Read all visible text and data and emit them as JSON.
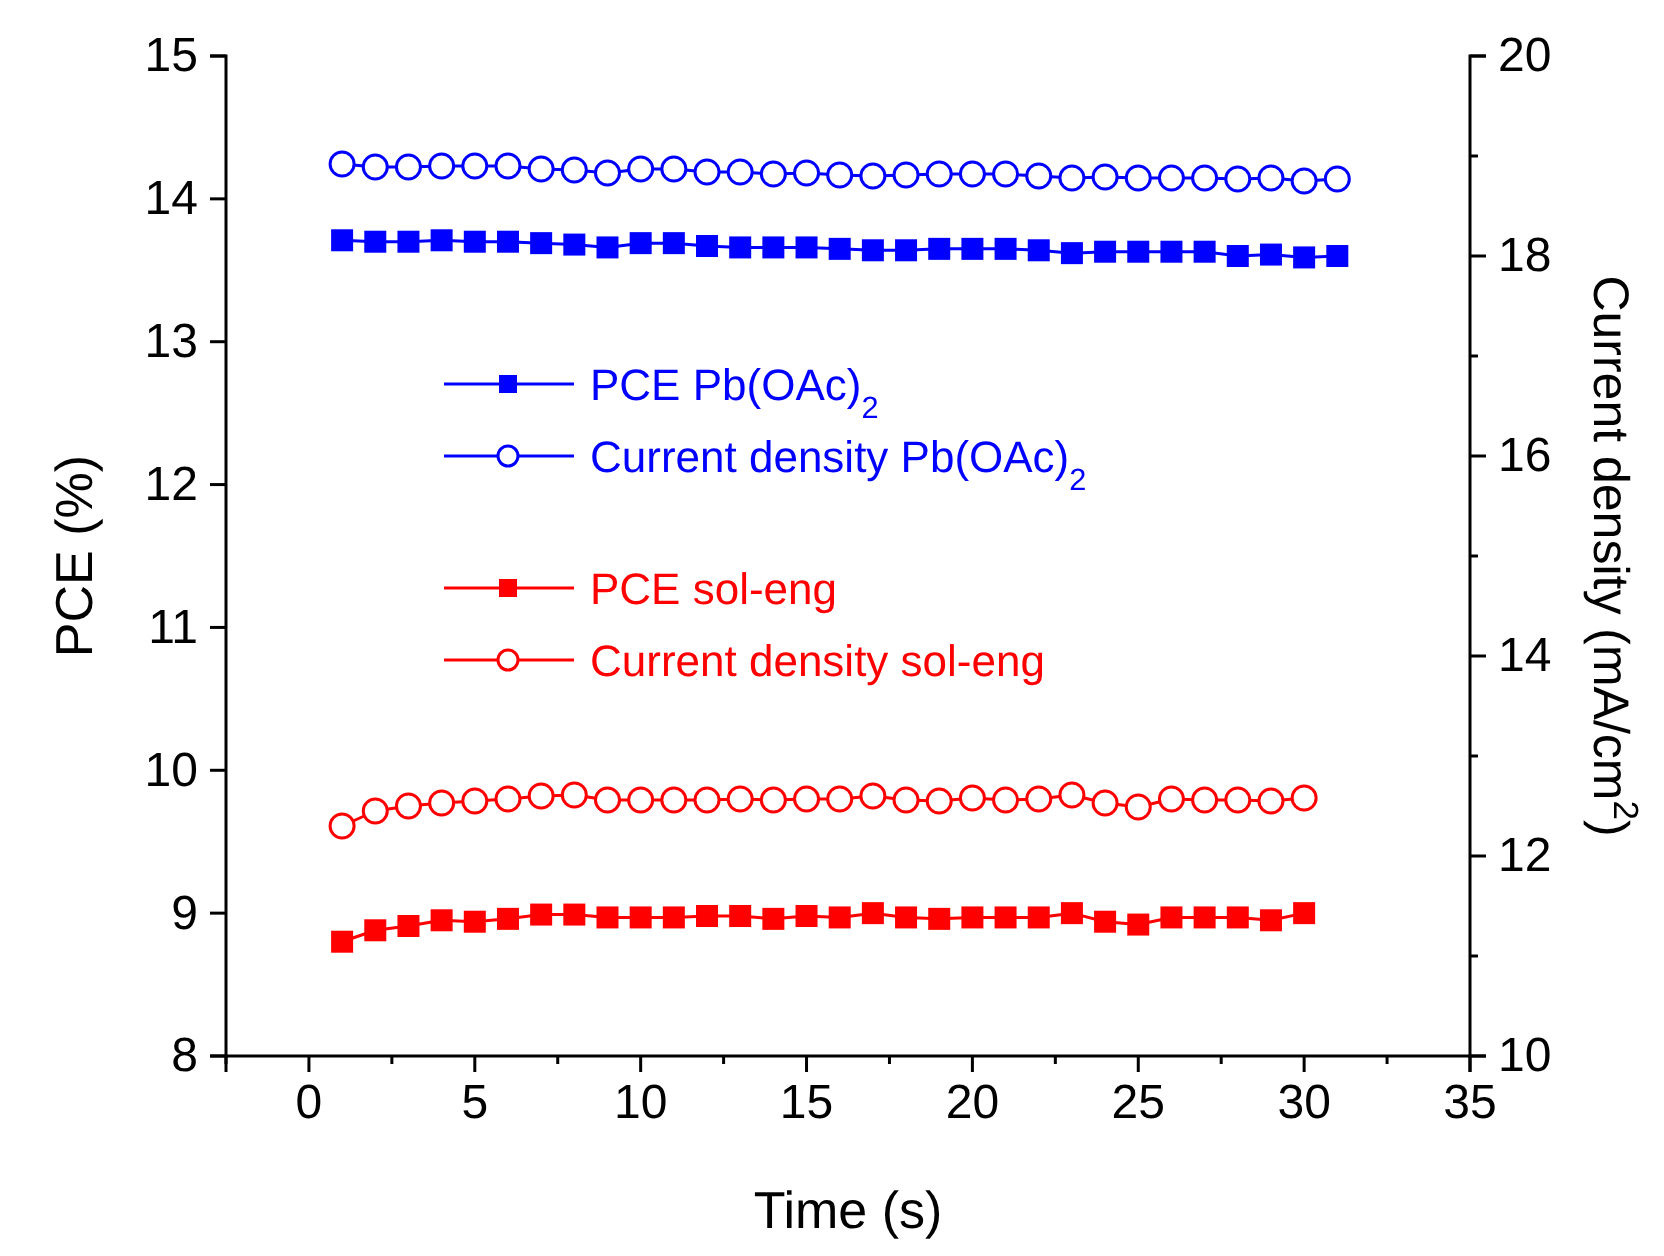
{
  "chart_data": {
    "type": "line",
    "xlabel": "Time (s)",
    "ylabel": "PCE (%)",
    "y2label": "Current density (mA/cm$^{2}$)",
    "xlim": [
      -2.5,
      35
    ],
    "xticks": [
      {
        "value": -2.5,
        "label": null
      },
      0,
      {
        "value": 2.5,
        "label": null
      },
      5,
      {
        "value": 7.5,
        "label": null
      },
      10,
      {
        "value": 12.5,
        "label": null
      },
      15,
      {
        "value": 17.5,
        "label": null
      },
      20,
      {
        "value": 22.5,
        "label": null
      },
      25,
      {
        "value": 27.5,
        "label": null
      },
      30,
      {
        "value": 32.5,
        "label": null
      },
      35
    ],
    "ylim": [
      8,
      15
    ],
    "yticks": [
      8,
      9,
      10,
      11,
      12,
      13,
      14,
      15
    ],
    "y2lim": [
      10,
      20
    ],
    "y2ticks": [
      10,
      {
        "value": 11,
        "label": null
      },
      12,
      {
        "value": 13,
        "label": null
      },
      14,
      {
        "value": 15,
        "label": null
      },
      16,
      {
        "value": 17,
        "label": null
      },
      18,
      {
        "value": 19,
        "label": null
      },
      20
    ],
    "legend": "center left",
    "line_style": "solid",
    "grid": false,
    "series": [
      {
        "name": "PCE Pb(OAc)$_{2}$",
        "color": "#0000ff",
        "marker": "square",
        "x": [
          1,
          2,
          3,
          4,
          5,
          6,
          7,
          8,
          9,
          10,
          11,
          12,
          13,
          14,
          15,
          16,
          17,
          18,
          19,
          20,
          21,
          22,
          23,
          24,
          25,
          26,
          27,
          28,
          29,
          30,
          31
        ],
        "values": [
          13.71,
          13.7,
          13.7,
          13.71,
          13.7,
          13.7,
          13.69,
          13.68,
          13.66,
          13.69,
          13.69,
          13.67,
          13.66,
          13.66,
          13.66,
          13.65,
          13.64,
          13.64,
          13.65,
          13.65,
          13.65,
          13.64,
          13.62,
          13.63,
          13.63,
          13.63,
          13.63,
          13.6,
          13.61,
          13.59,
          13.6
        ]
      },
      {
        "name": "Current density Pb(OAc)$_{2}$",
        "color": "#0000ff",
        "marker": "circle",
        "axis": "y2",
        "x": [
          1,
          2,
          3,
          4,
          5,
          6,
          7,
          8,
          9,
          10,
          11,
          12,
          13,
          14,
          15,
          16,
          17,
          18,
          19,
          20,
          21,
          22,
          23,
          24,
          25,
          26,
          27,
          28,
          29,
          30,
          31
        ],
        "values": [
          18.92,
          18.89,
          18.89,
          18.9,
          18.9,
          18.9,
          18.87,
          18.86,
          18.83,
          18.87,
          18.87,
          18.84,
          18.84,
          18.82,
          18.83,
          18.81,
          18.8,
          18.81,
          18.82,
          18.82,
          18.82,
          18.8,
          18.78,
          18.79,
          18.78,
          18.78,
          18.78,
          18.77,
          18.78,
          18.75,
          18.77
        ]
      },
      {
        "name": "PCE sol-eng",
        "color": "#ff0000",
        "marker": "square",
        "x": [
          1,
          2,
          3,
          4,
          5,
          6,
          7,
          8,
          9,
          10,
          11,
          12,
          13,
          14,
          15,
          16,
          17,
          18,
          19,
          20,
          21,
          22,
          23,
          24,
          25,
          26,
          27,
          28,
          29,
          30
        ],
        "values": [
          8.8,
          8.88,
          8.91,
          8.95,
          8.94,
          8.96,
          8.99,
          8.99,
          8.97,
          8.97,
          8.97,
          8.98,
          8.98,
          8.96,
          8.98,
          8.97,
          9.0,
          8.97,
          8.96,
          8.97,
          8.97,
          8.97,
          9.0,
          8.94,
          8.92,
          8.97,
          8.97,
          8.97,
          8.95,
          9.0
        ]
      },
      {
        "name": "Current density sol-eng",
        "color": "#ff0000",
        "marker": "circle",
        "axis": "y2",
        "x": [
          1,
          2,
          3,
          4,
          5,
          6,
          7,
          8,
          9,
          10,
          11,
          12,
          13,
          14,
          15,
          16,
          17,
          18,
          19,
          20,
          21,
          22,
          23,
          24,
          25,
          26,
          27,
          28,
          29,
          30
        ],
        "values": [
          12.3,
          12.45,
          12.5,
          12.53,
          12.55,
          12.57,
          12.6,
          12.61,
          12.56,
          12.56,
          12.56,
          12.56,
          12.57,
          12.56,
          12.57,
          12.57,
          12.6,
          12.56,
          12.55,
          12.58,
          12.56,
          12.57,
          12.61,
          12.53,
          12.49,
          12.57,
          12.56,
          12.56,
          12.55,
          12.58
        ]
      }
    ]
  }
}
